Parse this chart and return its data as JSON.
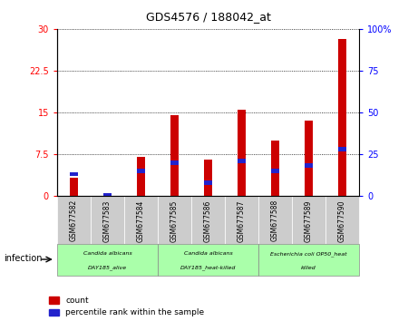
{
  "title": "GDS4576 / 188042_at",
  "samples": [
    "GSM677582",
    "GSM677583",
    "GSM677584",
    "GSM677585",
    "GSM677586",
    "GSM677587",
    "GSM677588",
    "GSM677589",
    "GSM677590"
  ],
  "count_values": [
    3.2,
    0.0,
    7.0,
    14.5,
    6.5,
    15.5,
    10.0,
    13.5,
    28.2
  ],
  "percentile_values": [
    13.0,
    0.0,
    15.0,
    20.0,
    8.0,
    21.0,
    15.0,
    18.0,
    28.0
  ],
  "left_ylim": [
    0,
    30
  ],
  "right_ylim": [
    0,
    100
  ],
  "left_yticks": [
    0,
    7.5,
    15,
    22.5,
    30
  ],
  "right_yticks": [
    0,
    25,
    50,
    75,
    100
  ],
  "left_yticklabels": [
    "0",
    "7.5",
    "15",
    "22.5",
    "30"
  ],
  "right_yticklabels": [
    "0",
    "25",
    "50",
    "75",
    "100%"
  ],
  "bar_color": "#cc0000",
  "percentile_color": "#2222cc",
  "bar_width": 0.25,
  "groups": [
    {
      "label_top": "Candida albicans",
      "label_bot": "DAY185_alive",
      "start": 0,
      "end": 3
    },
    {
      "label_top": "Candida albicans",
      "label_bot": "DAY185_heat-killed",
      "start": 3,
      "end": 6
    },
    {
      "label_top": "Escherichia coli OP50_heat",
      "label_bot": "killed",
      "start": 6,
      "end": 9
    }
  ],
  "sample_bg_color": "#cccccc",
  "group_bg_color": "#aaffaa",
  "infection_label": "infection",
  "legend_count_label": "count",
  "legend_percentile_label": "percentile rank within the sample"
}
